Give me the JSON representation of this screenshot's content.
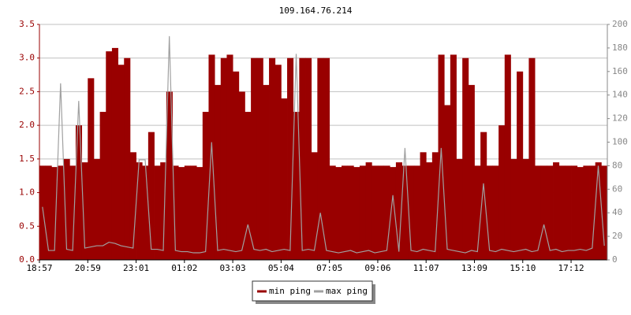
{
  "chart_data": {
    "type": "area",
    "title": "109.164.76.214",
    "categories": [
      "18:57",
      null,
      null,
      null,
      null,
      null,
      null,
      null,
      "20:59",
      null,
      null,
      null,
      null,
      null,
      null,
      null,
      "23:01",
      null,
      null,
      null,
      null,
      null,
      null,
      null,
      "01:02",
      null,
      null,
      null,
      null,
      null,
      null,
      null,
      "03:03",
      null,
      null,
      null,
      null,
      null,
      null,
      null,
      "05:04",
      null,
      null,
      null,
      null,
      null,
      null,
      null,
      "07:05",
      null,
      null,
      null,
      null,
      null,
      null,
      null,
      "09:06",
      null,
      null,
      null,
      null,
      null,
      null,
      null,
      "11:07",
      null,
      null,
      null,
      null,
      null,
      null,
      null,
      "13:09",
      null,
      null,
      null,
      null,
      null,
      null,
      null,
      "15:10",
      null,
      null,
      null,
      null,
      null,
      null,
      null,
      "17:12",
      null,
      null,
      null,
      null,
      null
    ],
    "series": [
      {
        "name": "min ping",
        "color": "#990000",
        "axis": "y",
        "values": [
          1.4,
          1.4,
          1.38,
          1.4,
          1.5,
          1.4,
          2.0,
          1.45,
          2.7,
          1.5,
          2.2,
          3.1,
          3.15,
          2.9,
          3.0,
          1.6,
          1.45,
          1.4,
          1.9,
          1.4,
          1.45,
          2.5,
          1.4,
          1.38,
          1.4,
          1.4,
          1.38,
          2.2,
          3.05,
          2.6,
          3.0,
          3.05,
          2.8,
          2.5,
          2.2,
          3.0,
          3.0,
          2.6,
          3.0,
          2.9,
          2.4,
          3.0,
          2.2,
          3.0,
          3.0,
          1.6,
          3.0,
          3.0,
          1.4,
          1.38,
          1.4,
          1.4,
          1.38,
          1.4,
          1.45,
          1.4,
          1.4,
          1.4,
          1.38,
          1.45,
          1.4,
          1.4,
          1.4,
          1.6,
          1.45,
          1.6,
          3.05,
          2.3,
          3.05,
          1.5,
          3.0,
          2.6,
          1.4,
          1.9,
          1.4,
          1.4,
          2.0,
          3.05,
          1.5,
          2.8,
          1.5,
          3.0,
          1.4,
          1.4,
          1.4,
          1.45,
          1.4,
          1.4,
          1.4,
          1.38,
          1.4,
          1.4,
          1.45,
          1.4
        ]
      },
      {
        "name": "max ping",
        "color": "#a0a0a0",
        "axis": "y2",
        "values": [
          45,
          8,
          8,
          150,
          9,
          8,
          135,
          10,
          11,
          12,
          12,
          15,
          14,
          12,
          11,
          10,
          85,
          85,
          9,
          9,
          8,
          190,
          8,
          7,
          7,
          6,
          6,
          7,
          100,
          8,
          9,
          8,
          7,
          8,
          30,
          9,
          8,
          9,
          7,
          8,
          9,
          8,
          175,
          8,
          9,
          8,
          40,
          8,
          7,
          6,
          7,
          8,
          6,
          7,
          8,
          6,
          7,
          8,
          55,
          7,
          95,
          8,
          7,
          9,
          8,
          7,
          95,
          9,
          8,
          7,
          6,
          8,
          7,
          65,
          8,
          7,
          9,
          8,
          7,
          8,
          9,
          7,
          8,
          30,
          8,
          9,
          7,
          8,
          8,
          9,
          8,
          10,
          80,
          12
        ]
      }
    ],
    "ylim": [
      0,
      3.5
    ],
    "yticks": [
      {
        "value": 0,
        "label": "0.0"
      },
      0.5,
      {
        "value": 1,
        "label": "1.0"
      },
      1.5,
      {
        "value": 2,
        "label": "2.0"
      },
      2.5,
      {
        "value": 3,
        "label": "3.0"
      },
      3.5
    ],
    "y2lim": [
      0,
      200
    ],
    "y2ticks": [
      0,
      20,
      40,
      60,
      80,
      100,
      120,
      140,
      160,
      180,
      200
    ],
    "grid": true
  }
}
